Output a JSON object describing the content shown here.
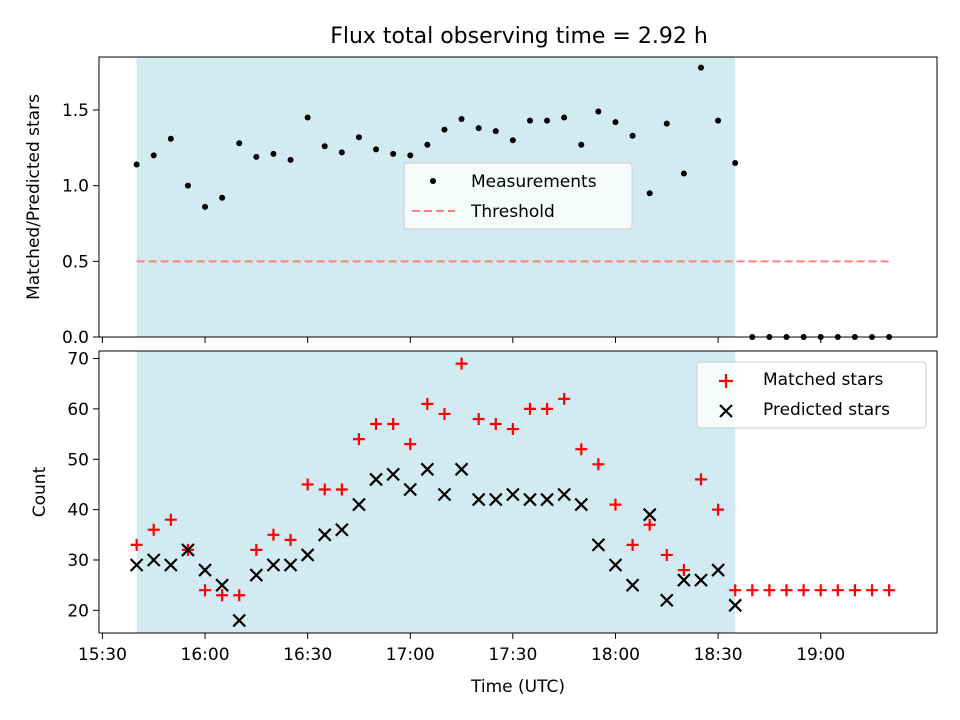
{
  "title": "Flux total observing time = 2.92 h",
  "colors": {
    "shade": "#add8e6",
    "threshold": "#ff7f7f",
    "matched": "#ff0000",
    "predicted": "#000000",
    "measurement": "#000000"
  },
  "chart_data": [
    {
      "type": "scatter",
      "panel": "top",
      "title": "Flux total observing time = 2.92 h",
      "xlabel": "",
      "ylabel": "Matched/Predicted stars",
      "xlim": [
        "15:29",
        "19:34"
      ],
      "ylim": [
        0.0,
        1.85
      ],
      "yticks": [
        "0.0",
        "0.5",
        "1.0",
        "1.5"
      ],
      "shaded_span": [
        "15:40",
        "18:35"
      ],
      "legend_position": "center",
      "series": [
        {
          "name": "Measurements",
          "marker": "dot",
          "x": [
            "15:40",
            "15:45",
            "15:50",
            "15:55",
            "16:00",
            "16:05",
            "16:10",
            "16:15",
            "16:20",
            "16:25",
            "16:30",
            "16:35",
            "16:40",
            "16:45",
            "16:50",
            "16:55",
            "17:00",
            "17:05",
            "17:10",
            "17:15",
            "17:20",
            "17:25",
            "17:30",
            "17:35",
            "17:40",
            "17:45",
            "17:50",
            "17:55",
            "18:00",
            "18:05",
            "18:10",
            "18:15",
            "18:20",
            "18:25",
            "18:30",
            "18:35",
            "18:40",
            "18:45",
            "18:50",
            "18:55",
            "19:00",
            "19:05",
            "19:10",
            "19:15",
            "19:20"
          ],
          "y": [
            1.14,
            1.2,
            1.31,
            1.0,
            0.86,
            0.92,
            1.28,
            1.19,
            1.21,
            1.17,
            1.45,
            1.26,
            1.22,
            1.32,
            1.24,
            1.21,
            1.2,
            1.27,
            1.37,
            1.44,
            1.38,
            1.36,
            1.3,
            1.43,
            1.43,
            1.45,
            1.27,
            1.49,
            1.42,
            1.33,
            0.95,
            1.41,
            1.08,
            1.78,
            1.43,
            1.15,
            0.0,
            0.0,
            0.0,
            0.0,
            0.0,
            0.0,
            0.0,
            0.0,
            0.0
          ]
        },
        {
          "name": "Threshold",
          "style": "dashed",
          "x": [
            "15:40",
            "19:20"
          ],
          "y": [
            0.5,
            0.5
          ]
        }
      ]
    },
    {
      "type": "scatter",
      "panel": "bottom",
      "xlabel": "Time (UTC)",
      "ylabel": "Count",
      "xlim": [
        "15:29",
        "19:34"
      ],
      "ylim": [
        15.5,
        71.5
      ],
      "xticks": [
        "15:30",
        "16:00",
        "16:30",
        "17:00",
        "17:30",
        "18:00",
        "18:30",
        "19:00"
      ],
      "yticks": [
        "20",
        "30",
        "40",
        "50",
        "60",
        "70"
      ],
      "shaded_span": [
        "15:40",
        "18:35"
      ],
      "legend_position": "upper right",
      "series": [
        {
          "name": "Matched stars",
          "marker": "plus",
          "x": [
            "15:40",
            "15:45",
            "15:50",
            "15:55",
            "16:00",
            "16:05",
            "16:10",
            "16:15",
            "16:20",
            "16:25",
            "16:30",
            "16:35",
            "16:40",
            "16:45",
            "16:50",
            "16:55",
            "17:00",
            "17:05",
            "17:10",
            "17:15",
            "17:20",
            "17:25",
            "17:30",
            "17:35",
            "17:40",
            "17:45",
            "17:50",
            "17:55",
            "18:00",
            "18:05",
            "18:10",
            "18:15",
            "18:20",
            "18:25",
            "18:30",
            "18:35",
            "18:40",
            "18:45",
            "18:50",
            "18:55",
            "19:00",
            "19:05",
            "19:10",
            "19:15",
            "19:20"
          ],
          "y": [
            33,
            36,
            38,
            32,
            24,
            23,
            23,
            32,
            35,
            34,
            45,
            44,
            44,
            54,
            57,
            57,
            53,
            61,
            59,
            69,
            58,
            57,
            56,
            60,
            60,
            62,
            52,
            49,
            41,
            33,
            37,
            31,
            28,
            46,
            40,
            24,
            24,
            24,
            24,
            24,
            24,
            24,
            24,
            24,
            24
          ]
        },
        {
          "name": "Predicted stars",
          "marker": "x",
          "x": [
            "15:40",
            "15:45",
            "15:50",
            "15:55",
            "16:00",
            "16:05",
            "16:10",
            "16:15",
            "16:20",
            "16:25",
            "16:30",
            "16:35",
            "16:40",
            "16:45",
            "16:50",
            "16:55",
            "17:00",
            "17:05",
            "17:10",
            "17:15",
            "17:20",
            "17:25",
            "17:30",
            "17:35",
            "17:40",
            "17:45",
            "17:50",
            "17:55",
            "18:00",
            "18:05",
            "18:10",
            "18:15",
            "18:20",
            "18:25",
            "18:30",
            "18:35"
          ],
          "y": [
            29,
            30,
            29,
            32,
            28,
            25,
            18,
            27,
            29,
            29,
            31,
            35,
            36,
            41,
            46,
            47,
            44,
            48,
            43,
            48,
            42,
            42,
            43,
            42,
            42,
            43,
            41,
            33,
            29,
            25,
            39,
            22,
            26,
            26,
            28,
            21
          ]
        }
      ]
    }
  ]
}
